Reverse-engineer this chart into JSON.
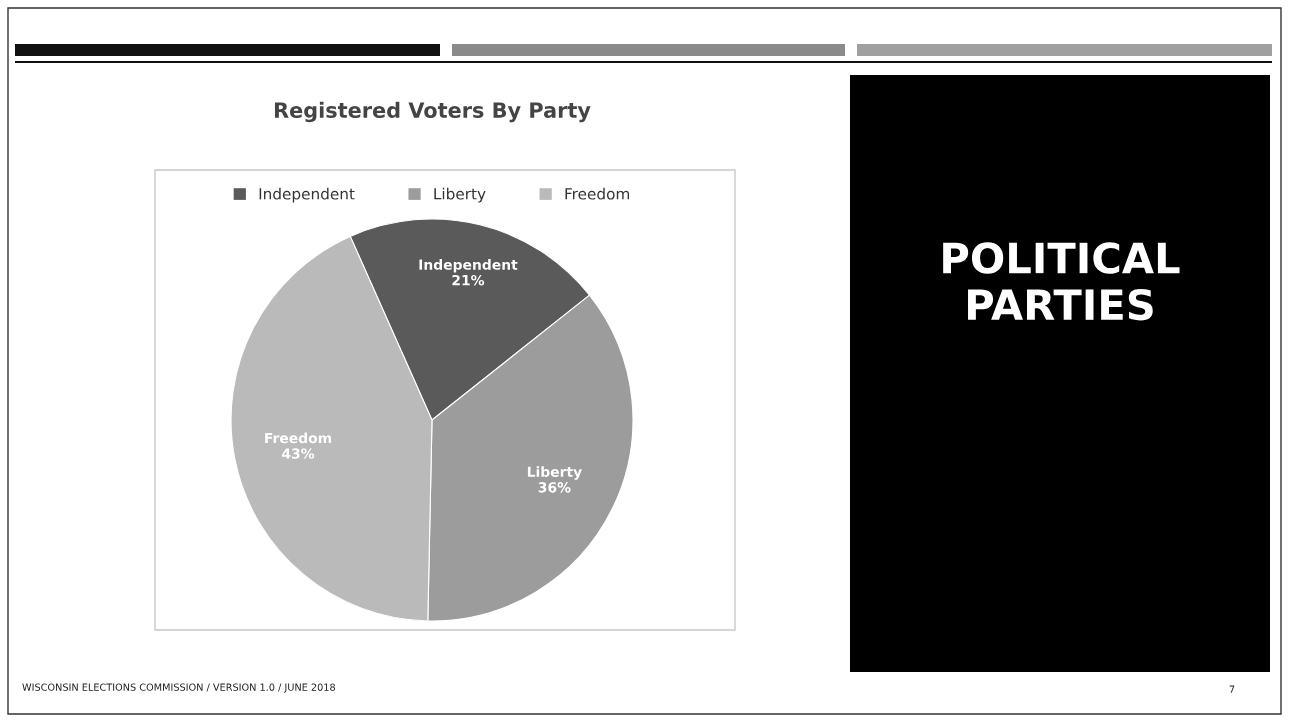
{
  "chart_data": {
    "type": "pie",
    "title": "Registered Voters By Party",
    "categories": [
      "Independent",
      "Liberty",
      "Freedom"
    ],
    "values": [
      21,
      36,
      43
    ],
    "colors": [
      "#5a5a5a",
      "#9c9c9c",
      "#bababa"
    ],
    "value_labels": [
      "21%",
      "36%",
      "43%"
    ],
    "legend": "top",
    "annotations": [
      "POLITICAL PARTIES",
      "WISCONSIN ELECTIONS COMMISSION / VERSION 1.0 / JUNE 2018",
      "7"
    ]
  }
}
